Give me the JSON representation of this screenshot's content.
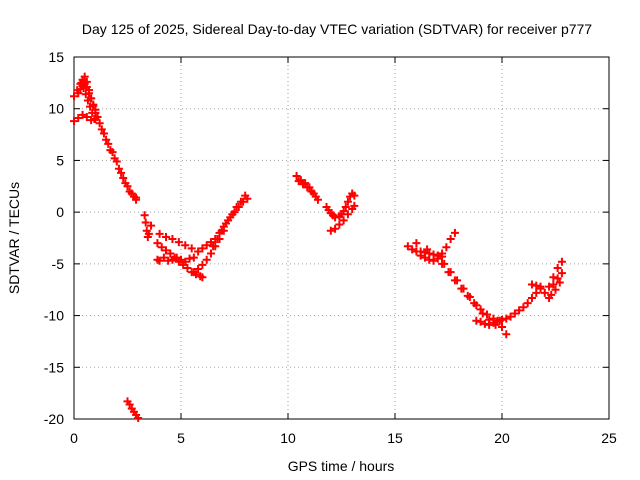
{
  "chart_data": {
    "type": "scatter",
    "title": "Day 125 of 2025, Sidereal Day-to-day VTEC variation (SDTVAR) for receiver p777",
    "xlabel": "GPS time / hours",
    "ylabel": "SDTVAR / TECUs",
    "xlim": [
      0,
      25
    ],
    "ylim": [
      -20,
      15
    ],
    "xticks": [
      0,
      5,
      10,
      15,
      20,
      25
    ],
    "yticks": [
      -20,
      -15,
      -10,
      -5,
      0,
      5,
      10,
      15
    ],
    "xtick_labels": [
      "0",
      "5",
      "10",
      "15",
      "20",
      "25"
    ],
    "ytick_labels": [
      "-20",
      "-15",
      "-10",
      "-5",
      "0",
      "5",
      "10",
      "15"
    ],
    "grid": true,
    "marker": "plus",
    "color": "#ff0000",
    "series": [
      {
        "name": "p777",
        "x": [
          0.0,
          0.15,
          0.3,
          0.4,
          0.5,
          0.6,
          0.7,
          0.8,
          0.9,
          1.0,
          1.2,
          1.4,
          1.6,
          1.8,
          2.0,
          2.2,
          2.4,
          2.6,
          2.8,
          2.9,
          0.2,
          0.3,
          0.4,
          0.5,
          0.6,
          0.7,
          0.8,
          0.9,
          1.0,
          1.1,
          1.3,
          1.5,
          1.7,
          1.9,
          2.1,
          2.3,
          2.5,
          2.7,
          2.9,
          0.0,
          0.2,
          0.4,
          0.6,
          0.8,
          1.0,
          0.35,
          0.45,
          0.55,
          0.65,
          0.75,
          0.85,
          0.95,
          2.5,
          2.6,
          2.7,
          2.8,
          2.9,
          3.0,
          3.3,
          3.35,
          3.4,
          3.45,
          3.5,
          3.6,
          3.9,
          4.0,
          4.2,
          4.4,
          4.6,
          4.8,
          5.0,
          5.2,
          5.4,
          5.6,
          3.9,
          4.1,
          4.3,
          4.5,
          4.7,
          4.9,
          5.1,
          5.3,
          5.5,
          5.7,
          5.9,
          6.0,
          4.0,
          4.3,
          4.6,
          4.9,
          5.2,
          5.5,
          5.8,
          6.0,
          6.2,
          6.4,
          6.6,
          6.8,
          7.0,
          7.2,
          7.4,
          7.6,
          7.8,
          8.0,
          5.6,
          5.8,
          6.0,
          6.2,
          6.4,
          6.6,
          6.8,
          7.0,
          6.5,
          6.7,
          6.9,
          7.1,
          7.3,
          7.5,
          7.7,
          7.9,
          8.1,
          10.4,
          10.6,
          10.8,
          11.0,
          11.2,
          11.4,
          10.5,
          10.7,
          10.9,
          11.1,
          11.3,
          11.8,
          11.9,
          12.0,
          12.1,
          12.2,
          12.4,
          12.5,
          12.6,
          12.7,
          12.8,
          12.9,
          13.0,
          13.1,
          12.0,
          12.2,
          12.4,
          12.6,
          12.8,
          13.0,
          13.1,
          15.6,
          15.8,
          16.0,
          16.2,
          16.4,
          16.6,
          16.8,
          17.0,
          17.2,
          16.2,
          16.4,
          16.6,
          16.8,
          17.0,
          17.2,
          17.4,
          17.6,
          17.8,
          16.0,
          16.5,
          17.0,
          17.3,
          17.6,
          17.9,
          18.2,
          18.5,
          18.8,
          19.1,
          19.4,
          19.7,
          20.0,
          17.2,
          17.5,
          17.8,
          18.1,
          18.4,
          18.7,
          19.0,
          19.3,
          19.6,
          19.9,
          18.8,
          19.0,
          19.2,
          19.4,
          19.6,
          19.8,
          20.0,
          20.2,
          20.4,
          20.6,
          20.8,
          21.0,
          21.2,
          21.4,
          21.6,
          21.8,
          20.2,
          21.4,
          21.6,
          21.8,
          22.0,
          22.2,
          22.4,
          22.6,
          22.8,
          22.2,
          22.4,
          22.6,
          22.8,
          22.3,
          22.5,
          22.7
        ],
        "y": [
          11.2,
          11.8,
          12.4,
          12.8,
          13.1,
          12.6,
          11.8,
          11.0,
          10.3,
          9.6,
          8.6,
          7.6,
          6.6,
          5.8,
          4.9,
          3.8,
          2.8,
          2.0,
          1.5,
          1.2,
          11.5,
          11.9,
          12.2,
          12.4,
          12.1,
          11.5,
          11.0,
          10.4,
          9.9,
          9.2,
          8.0,
          7.0,
          6.0,
          5.2,
          4.2,
          3.3,
          2.5,
          1.8,
          1.4,
          8.8,
          9.1,
          9.4,
          9.2,
          8.9,
          9.0,
          12.5,
          12.0,
          11.4,
          10.8,
          10.2,
          9.6,
          9.0,
          -18.3,
          -18.6,
          -19.0,
          -19.3,
          -19.6,
          -19.9,
          -0.3,
          -1.0,
          -1.8,
          -2.4,
          -2.1,
          -1.3,
          -4.6,
          -4.7,
          -4.4,
          -4.7,
          -4.6,
          -4.4,
          -4.6,
          -4.8,
          -4.5,
          -4.4,
          -3.0,
          -3.4,
          -3.7,
          -4.0,
          -4.4,
          -4.8,
          -5.1,
          -5.4,
          -5.8,
          -6.0,
          -6.2,
          -6.3,
          -2.1,
          -2.4,
          -2.6,
          -2.9,
          -3.2,
          -3.5,
          -3.8,
          -3.5,
          -3.2,
          -2.9,
          -2.6,
          -2.0,
          -1.4,
          -0.8,
          -0.2,
          0.5,
          1.0,
          1.6,
          -5.8,
          -5.5,
          -5.1,
          -4.6,
          -4.0,
          -3.3,
          -2.6,
          -1.8,
          -3.3,
          -2.6,
          -1.8,
          -1.1,
          -0.5,
          0.0,
          0.5,
          1.0,
          1.3,
          3.5,
          3.1,
          2.8,
          2.4,
          1.8,
          1.2,
          3.0,
          2.7,
          2.4,
          2.0,
          1.5,
          0.5,
          0.2,
          -0.1,
          -0.3,
          -0.5,
          -0.4,
          -0.2,
          0.1,
          0.5,
          1.0,
          1.5,
          1.8,
          1.6,
          -1.8,
          -1.6,
          -1.2,
          -0.8,
          -0.2,
          0.3,
          0.6,
          -3.3,
          -3.6,
          -3.8,
          -3.8,
          -3.9,
          -4.0,
          -4.1,
          -4.2,
          -4.3,
          -4.2,
          -4.4,
          -4.6,
          -4.7,
          -4.5,
          -4.0,
          -3.4,
          -2.6,
          -2.0,
          -3.0,
          -3.6,
          -4.2,
          -5.0,
          -5.8,
          -6.6,
          -7.4,
          -8.2,
          -9.0,
          -9.8,
          -10.4,
          -10.9,
          -11.1,
          -5.0,
          -5.8,
          -6.6,
          -7.4,
          -8.1,
          -8.8,
          -9.4,
          -9.9,
          -10.3,
          -10.5,
          -10.5,
          -10.6,
          -10.8,
          -10.9,
          -10.7,
          -10.5,
          -10.4,
          -10.3,
          -10.1,
          -9.8,
          -9.5,
          -9.2,
          -8.8,
          -8.3,
          -7.8,
          -7.4,
          -11.8,
          -7.0,
          -7.1,
          -7.2,
          -7.8,
          -8.3,
          -7.0,
          -6.4,
          -5.9,
          -7.2,
          -6.3,
          -5.4,
          -4.8,
          -8.0,
          -7.5,
          -6.8
        ]
      }
    ]
  }
}
